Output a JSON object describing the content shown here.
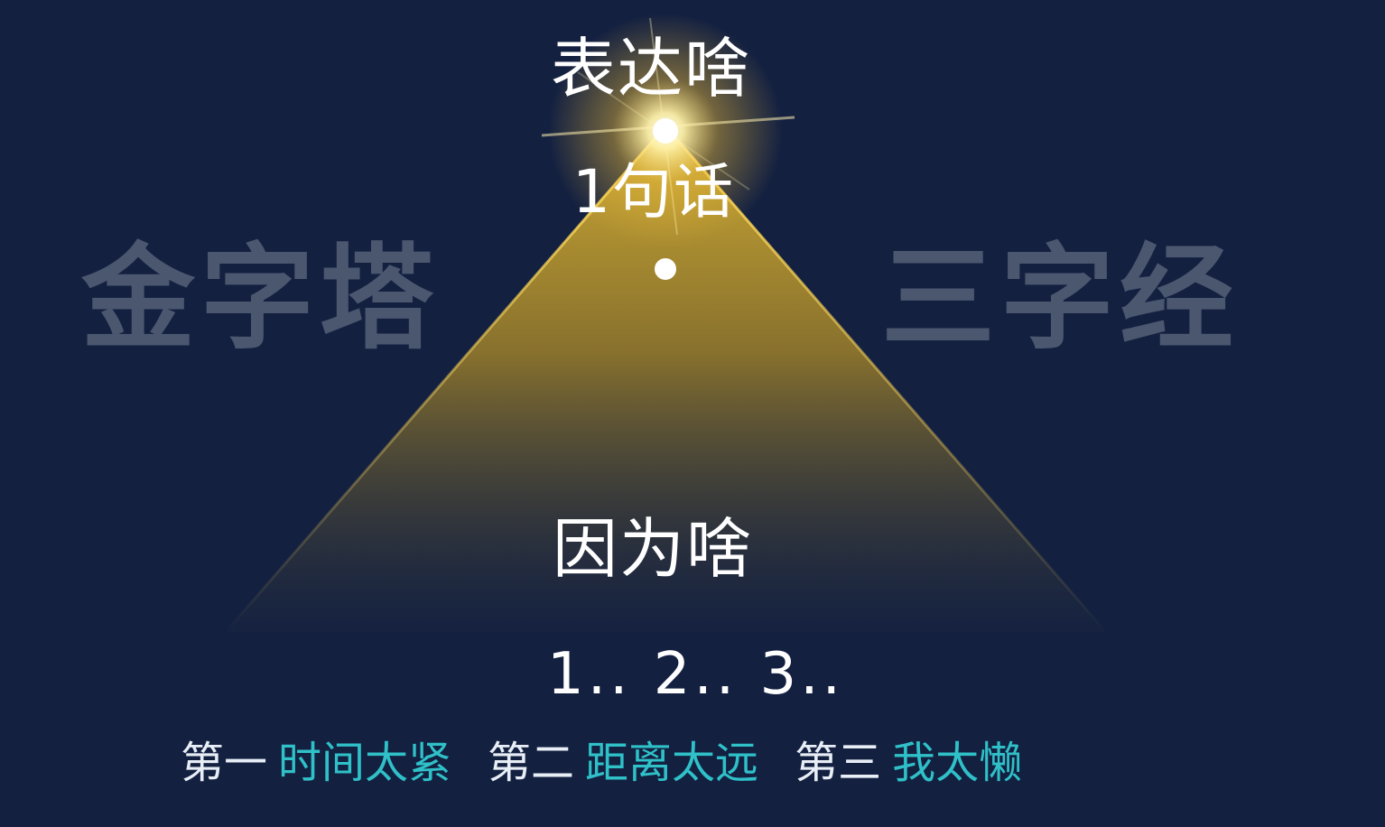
{
  "background_words": {
    "left": "金字塔",
    "right": "三字经"
  },
  "pyramid": {
    "top_label": "表达啥",
    "sentence_label": "1句话",
    "reason_label": "因为啥",
    "numbers_label": "1.. 2.. 3.."
  },
  "reasons": [
    {
      "ordinal": "第一",
      "text": "时间太紧"
    },
    {
      "ordinal": "第二",
      "text": "距离太远"
    },
    {
      "ordinal": "第三",
      "text": "我太懒"
    }
  ],
  "colors": {
    "background": "#132040",
    "pyramid_gold": "#c9a227",
    "glow": "#ffe68a",
    "reason_text": "#2fc0c8",
    "ordinal_text": "#e8eef6",
    "watermark": "#4b566f"
  }
}
